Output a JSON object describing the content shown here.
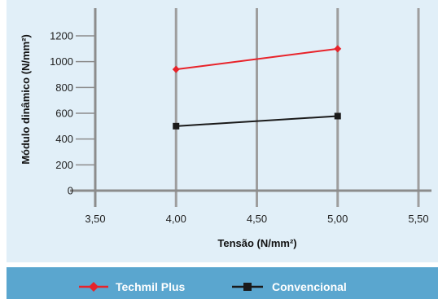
{
  "chart_data": {
    "type": "line",
    "xlabel": "Tensão (N/mm²)",
    "ylabel": "Módulo dinâmico (N/mm²)",
    "xlim": [
      3.5,
      5.5
    ],
    "ylim": [
      0,
      1200
    ],
    "x_ticks": [
      3.5,
      4.0,
      4.5,
      5.0,
      5.5
    ],
    "x_tick_labels": [
      "3,50",
      "4,00",
      "4,50",
      "5,00",
      "5,50"
    ],
    "y_ticks": [
      0,
      200,
      400,
      600,
      800,
      1000,
      1200
    ],
    "y_tick_labels": [
      "0",
      "200",
      "400",
      "600",
      "800",
      "1000",
      "1200"
    ],
    "grid": "vertical",
    "legend_position": "bottom",
    "series": [
      {
        "name": "Techmil Plus",
        "color": "#e8232a",
        "marker": "diamond",
        "x": [
          4.0,
          5.0
        ],
        "y": [
          940,
          1100
        ]
      },
      {
        "name": "Convencional",
        "color": "#1a1a1a",
        "marker": "square",
        "x": [
          4.0,
          5.0
        ],
        "y": [
          500,
          578
        ]
      }
    ]
  },
  "colors": {
    "plot_background": "#e1eff8",
    "legend_background": "#5aa6cf",
    "grid": "#9e9e9e",
    "axis": "#8c8c8c"
  }
}
